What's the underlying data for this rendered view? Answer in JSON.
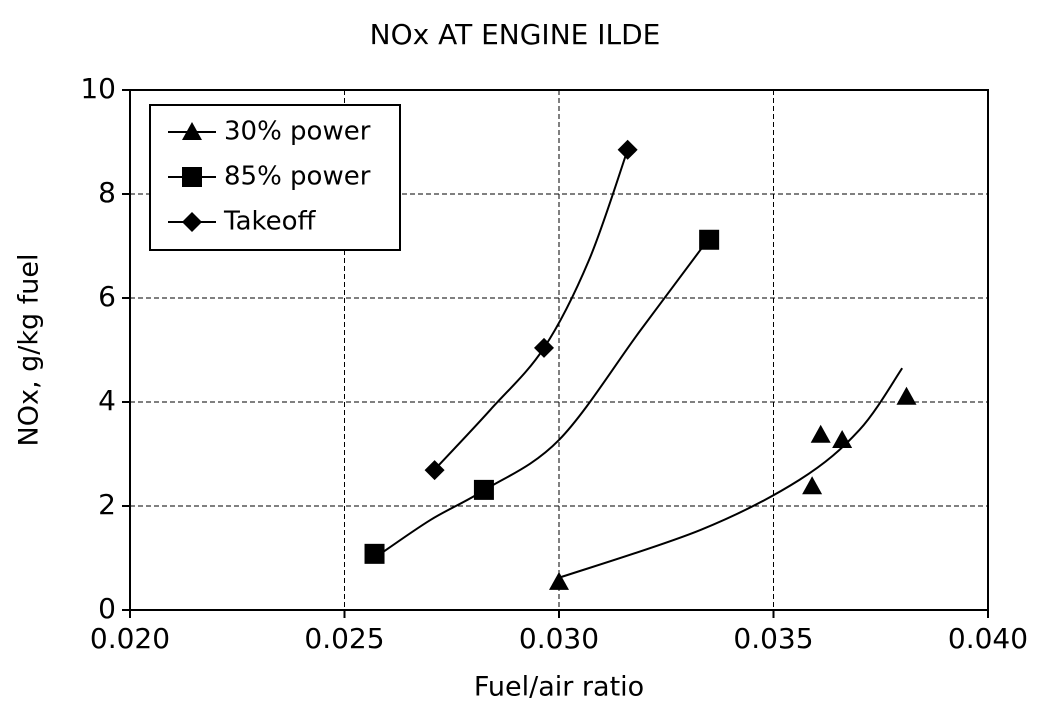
{
  "chart_data": {
    "type": "scatter",
    "title": "NOx AT ENGINE ILDE",
    "xlabel": "Fuel/air ratio",
    "ylabel": "NOx, g/kg fuel",
    "xlim": [
      0.02,
      0.04
    ],
    "xticks": [
      {
        "value": 0.02,
        "label": "0.020"
      },
      {
        "value": 0.025,
        "label": "0.025"
      },
      {
        "value": 0.03,
        "label": "0.030"
      },
      {
        "value": 0.035,
        "label": "0.035"
      },
      {
        "value": 0.04,
        "label": "0.040"
      }
    ],
    "ylim": [
      0,
      10
    ],
    "yticks": [
      0,
      2,
      4,
      6,
      8,
      10
    ],
    "grid": true,
    "legend": "upper left",
    "series": [
      {
        "name": "30% power",
        "color": "#000000",
        "marker": "triangle",
        "x": [
          0.03,
          0.0359,
          0.0361,
          0.0366,
          0.0381
        ],
        "values": [
          0.54,
          2.38,
          3.37,
          3.27,
          4.1
        ],
        "fit_x": [
          0.03,
          0.0333,
          0.0356,
          0.037,
          0.038
        ],
        "fit_y": [
          0.62,
          1.54,
          2.5,
          3.46,
          4.65
        ]
      },
      {
        "name": "85% power",
        "color": "#000000",
        "marker": "square",
        "x": [
          0.0257,
          0.02825,
          0.0335
        ],
        "values": [
          1.08,
          2.31,
          7.12
        ],
        "fit_x": [
          0.0257,
          0.027,
          0.02825,
          0.03,
          0.0319,
          0.0335
        ],
        "fit_y": [
          1.0,
          1.73,
          2.3,
          3.27,
          5.38,
          7.15
        ]
      },
      {
        "name": "Takeoff",
        "color": "#000000",
        "marker": "diamond",
        "x": [
          0.0271,
          0.02965,
          0.0316
        ],
        "values": [
          2.69,
          5.04,
          8.85
        ],
        "fit_x": [
          0.0271,
          0.0284,
          0.02965,
          0.0307,
          0.0316
        ],
        "fit_y": [
          2.7,
          3.85,
          5.04,
          6.73,
          8.85
        ]
      }
    ]
  }
}
